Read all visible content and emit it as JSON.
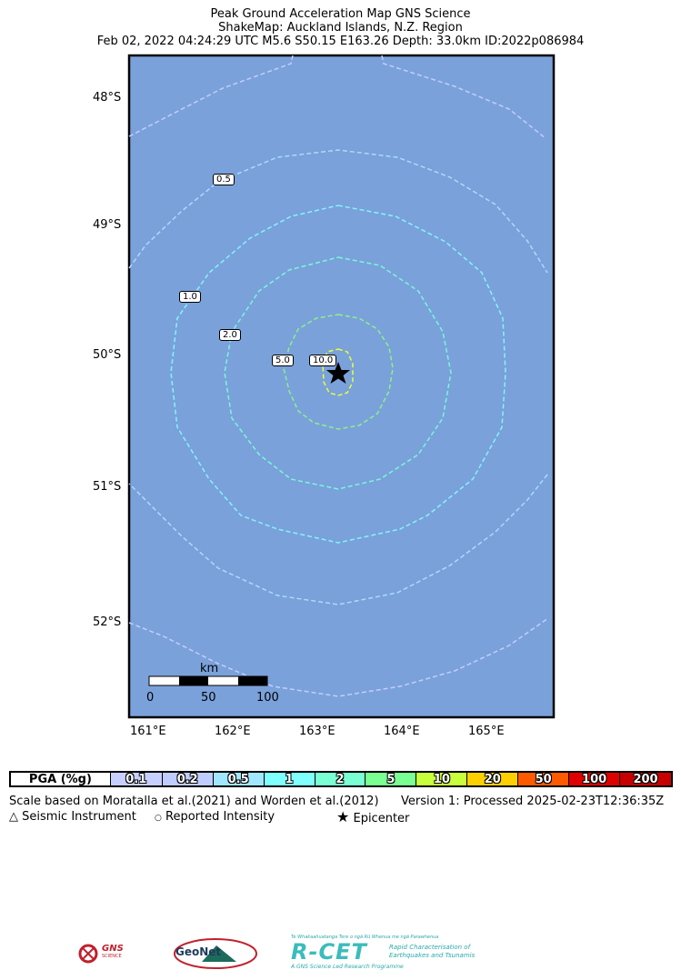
{
  "header": {
    "line1": "Peak Ground Acceleration Map GNS Science",
    "line2": "ShakeMap: Auckland Islands, N.Z. Region",
    "line3": "Feb 02, 2022 04:24:29 UTC M5.6 S50.15 E163.26 Depth: 33.0km ID:2022p086984"
  },
  "map": {
    "background_color": "#7aa1da",
    "lat_labels": [
      "48°S",
      "49°S",
      "50°S",
      "51°S",
      "52°S"
    ],
    "lon_labels": [
      "161°E",
      "162°E",
      "163°E",
      "164°E",
      "165°E"
    ],
    "contour_labels": [
      "0.5",
      "1.0",
      "2.0",
      "5.0",
      "10.0"
    ],
    "scale_bar": {
      "unit": "km",
      "ticks": [
        "0",
        "50",
        "100"
      ]
    },
    "epicenter_icon": "star-icon"
  },
  "legend": {
    "header": "PGA (%g)",
    "bins": [
      {
        "label": "0.1",
        "color": "#c7cfff"
      },
      {
        "label": "0.2",
        "color": "#bfccff"
      },
      {
        "label": "0.5",
        "color": "#a0e6ff"
      },
      {
        "label": "1",
        "color": "#80ffff"
      },
      {
        "label": "2",
        "color": "#7affd4"
      },
      {
        "label": "5",
        "color": "#7aff93"
      },
      {
        "label": "10",
        "color": "#c8ff3c"
      },
      {
        "label": "20",
        "color": "#ffd000"
      },
      {
        "label": "50",
        "color": "#ff5a00"
      },
      {
        "label": "100",
        "color": "#e00000"
      },
      {
        "label": "200",
        "color": "#c80000"
      }
    ]
  },
  "caption": {
    "scale_note": "Scale based on Moratalla et al.(2021) and Worden et al.(2012)",
    "version": "Version 1: Processed 2025-02-23T12:36:35Z",
    "seismic_instrument": "Seismic Instrument",
    "reported_intensity": "Reported Intensity",
    "epicenter": "Epicenter"
  },
  "logos": {
    "gns": "GNS",
    "gns_sub": "SCIENCE",
    "geonet": "GeoNet",
    "rcet": "R-CET",
    "rcet_top": "Te Whakaahuatanga Tere o ngā Rū Whenua me ngā Parawhenua",
    "rcet_side1": "Rapid Characterisation of",
    "rcet_side2": "Earthquakes and Tsunamis",
    "rcet_bottom": "A GNS Science Led Research Programme"
  }
}
